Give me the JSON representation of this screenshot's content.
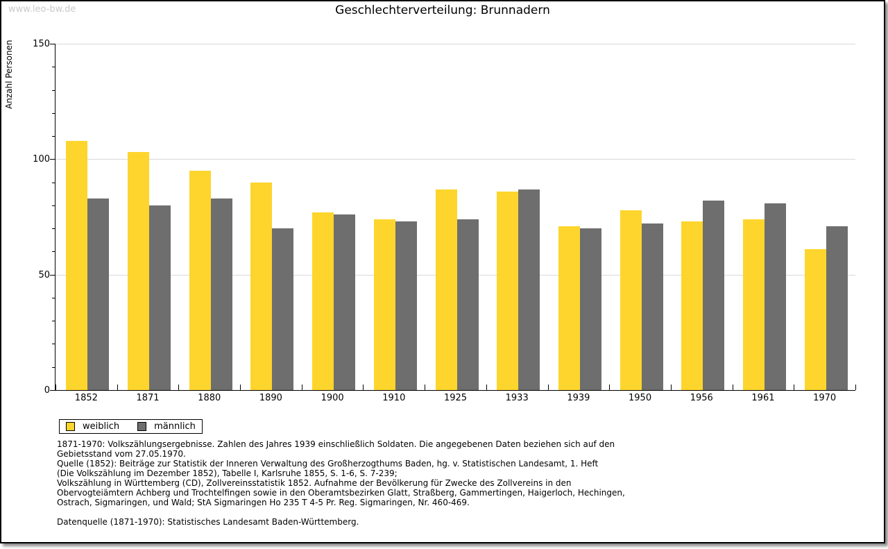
{
  "watermark": "www.leo-bw.de",
  "title": "Geschlechterverteilung: Brunnadern",
  "chart_data": {
    "type": "bar",
    "title": "Geschlechterverteilung: Brunnadern",
    "xlabel": "",
    "ylabel": "Anzahl Personen",
    "ylim": [
      0,
      150
    ],
    "yticks": [
      0,
      50,
      100,
      150
    ],
    "minor_tick_step": 10,
    "grid": true,
    "legend_position": "bottom-left",
    "categories": [
      "1852",
      "1871",
      "1880",
      "1890",
      "1900",
      "1910",
      "1925",
      "1933",
      "1939",
      "1950",
      "1956",
      "1961",
      "1970"
    ],
    "series": [
      {
        "name": "weiblich",
        "color": "#fdd52d",
        "values": [
          108,
          103,
          95,
          90,
          77,
          74,
          87,
          86,
          71,
          78,
          73,
          74,
          61
        ]
      },
      {
        "name": "männlich",
        "color": "#6e6e6e",
        "values": [
          83,
          80,
          83,
          70,
          76,
          73,
          74,
          87,
          70,
          72,
          82,
          81,
          71
        ]
      }
    ]
  },
  "footnotes": {
    "lines": [
      "1871-1970: Volkszählungsergebnisse. Zahlen des Jahres 1939 einschließlich Soldaten. Die angegebenen Daten beziehen sich auf den",
      "Gebietsstand vom 27.05.1970.",
      "Quelle (1852): Beiträge zur Statistik der Inneren Verwaltung des Großherzogthums Baden, hg. v. Statistischen Landesamt, 1. Heft",
      "(Die Volkszählung im Dezember 1852), Tabelle I, Karlsruhe 1855, S. 1-6, S. 7-239;",
      "Volkszählung in Württemberg (CD), Zollvereinsstatistik 1852. Aufnahme der Bevölkerung für Zwecke des Zollvereins in den",
      "Obervogteiämtern Achberg und Trochtelfingen sowie in den Oberamtsbezirken Glatt, Straßberg, Gammertingen, Haigerloch, Hechingen,",
      "Ostrach, Sigmaringen, und Wald; StA Sigmaringen Ho 235 T 4-5 Pr. Reg. Sigmaringen, Nr. 460-469.",
      "",
      "Datenquelle (1871-1970): Statistisches Landesamt Baden-Württemberg."
    ]
  }
}
